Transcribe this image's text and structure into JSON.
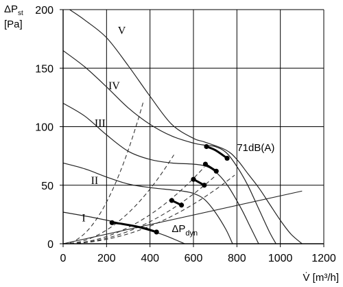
{
  "chart_data": {
    "type": "line",
    "ylabel": {
      "sym": "ΔP",
      "sub": "st",
      "unit": "[Pa]"
    },
    "xlabel": "V̇ [m³/h]",
    "xlim": [
      0,
      1200
    ],
    "ylim": [
      0,
      200
    ],
    "xticks": [
      "0",
      "200",
      "400",
      "600",
      "800",
      "1000",
      "1200"
    ],
    "yticks": [
      "0",
      "50",
      "100",
      "150",
      "200"
    ],
    "grid": true,
    "series": [
      {
        "name": "I",
        "points": [
          [
            0,
            27
          ],
          [
            150,
            22
          ],
          [
            300,
            16
          ],
          [
            420,
            10
          ],
          [
            470,
            7
          ],
          [
            560,
            0
          ]
        ]
      },
      {
        "name": "II",
        "points": [
          [
            0,
            69
          ],
          [
            100,
            64
          ],
          [
            200,
            57
          ],
          [
            300,
            51
          ],
          [
            400,
            48
          ],
          [
            500,
            46
          ],
          [
            550,
            45
          ],
          [
            600,
            43
          ],
          [
            650,
            38
          ],
          [
            700,
            27
          ],
          [
            750,
            12
          ],
          [
            780,
            0
          ]
        ]
      },
      {
        "name": "III",
        "points": [
          [
            0,
            120
          ],
          [
            100,
            109
          ],
          [
            200,
            93
          ],
          [
            300,
            79
          ],
          [
            400,
            72
          ],
          [
            500,
            69
          ],
          [
            600,
            68
          ],
          [
            660,
            66
          ],
          [
            710,
            60
          ],
          [
            760,
            49
          ],
          [
            820,
            30
          ],
          [
            860,
            15
          ],
          [
            900,
            0
          ]
        ]
      },
      {
        "name": "IV",
        "points": [
          [
            0,
            165
          ],
          [
            100,
            151
          ],
          [
            200,
            134
          ],
          [
            300,
            116
          ],
          [
            400,
            102
          ],
          [
            500,
            92
          ],
          [
            600,
            86
          ],
          [
            660,
            84
          ],
          [
            700,
            83
          ],
          [
            750,
            78
          ],
          [
            800,
            66
          ],
          [
            850,
            50
          ],
          [
            900,
            30
          ],
          [
            950,
            10
          ],
          [
            980,
            0
          ]
        ]
      },
      {
        "name": "V",
        "points": [
          [
            30,
            200
          ],
          [
            100,
            191
          ],
          [
            200,
            176
          ],
          [
            300,
            152
          ],
          [
            400,
            126
          ],
          [
            500,
            102
          ],
          [
            600,
            90
          ],
          [
            650,
            87
          ],
          [
            750,
            80
          ],
          [
            800,
            72
          ],
          [
            850,
            60
          ],
          [
            900,
            48
          ],
          [
            950,
            34
          ],
          [
            1000,
            20
          ],
          [
            1050,
            8
          ],
          [
            1100,
            0
          ]
        ]
      }
    ],
    "dynamic_pressure": {
      "label": "ΔP",
      "sub": "dyn",
      "points": [
        [
          0,
          0
        ],
        [
          1100,
          45
        ]
      ]
    },
    "system_curves": [
      {
        "k": 0.00089,
        "xmax": 370
      },
      {
        "k": 0.000292,
        "xmax": 510
      },
      {
        "k": 0.000155,
        "xmax": 650
      },
      {
        "k": 0.000118,
        "xmax": 700
      },
      {
        "k": 9.4e-05,
        "xmax": 790
      }
    ],
    "bold_segments": [
      [
        [
          225,
          18
        ],
        [
          270,
          17
        ],
        [
          330,
          15
        ],
        [
          380,
          13
        ],
        [
          430,
          10
        ]
      ],
      [
        [
          500,
          37
        ],
        [
          545,
          33
        ]
      ],
      [
        [
          600,
          55
        ],
        [
          650,
          50
        ]
      ],
      [
        [
          655,
          68
        ],
        [
          705,
          62
        ]
      ],
      [
        [
          660,
          83
        ],
        [
          700,
          80
        ],
        [
          755,
          73
        ]
      ]
    ],
    "markers": [
      [
        225,
        18
      ],
      [
        430,
        10
      ],
      [
        500,
        37
      ],
      [
        545,
        33
      ],
      [
        600,
        55
      ],
      [
        650,
        50
      ],
      [
        655,
        68
      ],
      [
        705,
        62
      ],
      [
        660,
        83
      ],
      [
        755,
        73
      ]
    ],
    "annotations": [
      {
        "text": "71dB(A)",
        "x": 800,
        "y": 82
      }
    ]
  }
}
